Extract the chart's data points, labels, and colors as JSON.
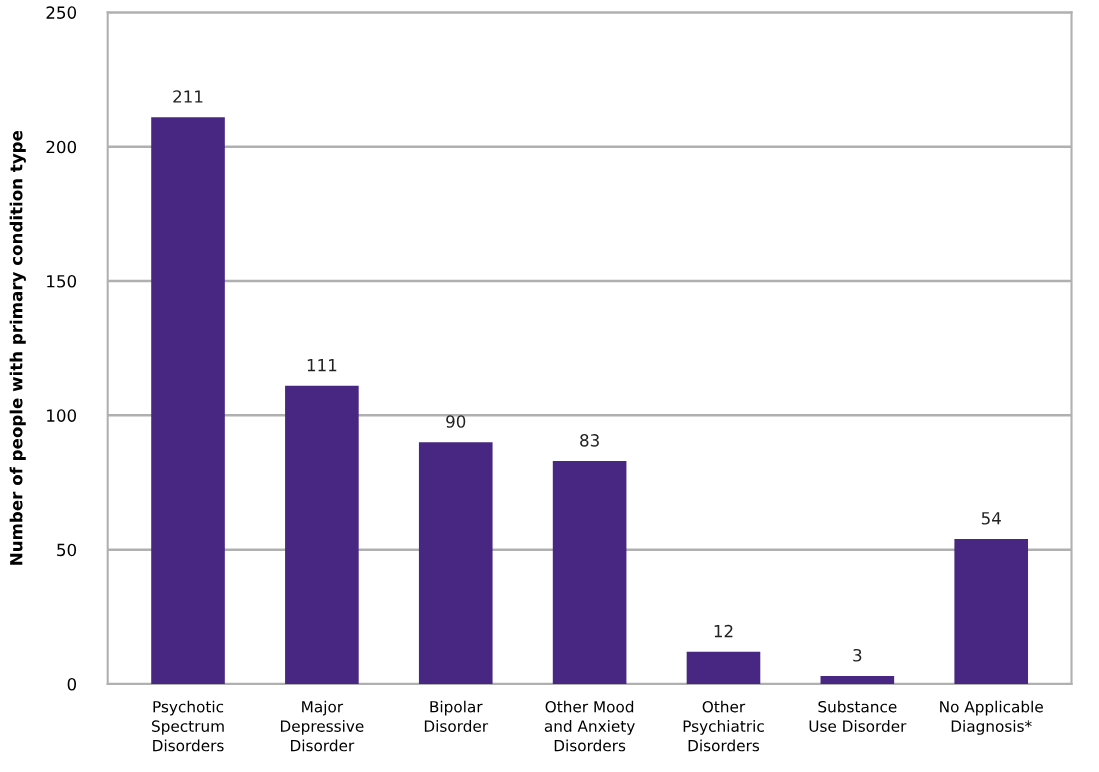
{
  "chart_data": {
    "type": "bar",
    "ylabel": "Number of people with primary condition type",
    "categories": [
      "Psychotic\nSpectrum\nDisorders",
      "Major\nDepressive\nDisorder",
      "Bipolar\nDisorder",
      "Other Mood\nand Anxiety\nDisorders",
      "Other\nPsychiatric\nDisorders",
      "Substance\nUse Disorder",
      "No Applicable\nDiagnosis*"
    ],
    "values": [
      211,
      111,
      90,
      83,
      12,
      3,
      54
    ],
    "color": "#472781",
    "ylim": [
      0,
      250
    ],
    "yticks": [
      0,
      50,
      100,
      150,
      200,
      250
    ],
    "grid": "y",
    "data_labels": true,
    "legend": false
  }
}
